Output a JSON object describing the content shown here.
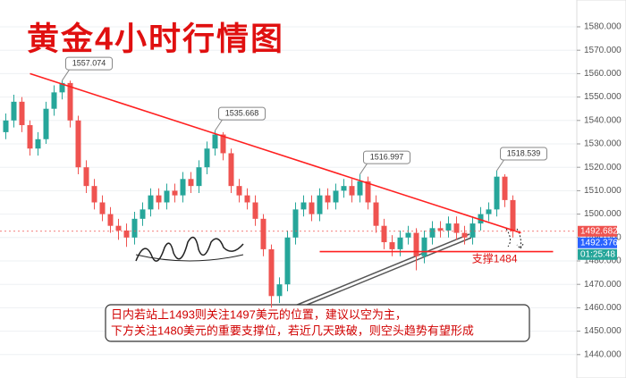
{
  "chart_data": {
    "type": "candlestick",
    "title": "黄金4小时行情图",
    "open": [
      1535,
      1540,
      1548,
      1538,
      1528,
      1532,
      1545,
      1552,
      1556,
      1540,
      1520,
      1512,
      1505,
      1500,
      1495,
      1493,
      1490,
      1498,
      1502,
      1508,
      1505,
      1510,
      1508,
      1515,
      1512,
      1520,
      1528,
      1534,
      1526,
      1512,
      1508,
      1505,
      1498,
      1485,
      1465,
      1470,
      1490,
      1502,
      1505,
      1500,
      1508,
      1505,
      1510,
      1512,
      1508,
      1514,
      1505,
      1495,
      1488,
      1485,
      1490,
      1492,
      1482,
      1490,
      1494,
      1493,
      1496,
      1492,
      1490,
      1496,
      1500,
      1502,
      1516,
      1506
    ],
    "high": [
      1543,
      1551,
      1550,
      1540,
      1535,
      1548,
      1555,
      1557.074,
      1557,
      1542,
      1523,
      1515,
      1508,
      1503,
      1498,
      1496,
      1501,
      1505,
      1511,
      1511,
      1513,
      1513,
      1518,
      1518,
      1523,
      1531,
      1535.668,
      1535,
      1528,
      1515,
      1511,
      1508,
      1500,
      1487,
      1473,
      1493,
      1505,
      1508,
      1508,
      1511,
      1511,
      1513,
      1515,
      1515,
      1516.997,
      1516,
      1508,
      1498,
      1491,
      1493,
      1495,
      1494,
      1493,
      1497,
      1497,
      1499,
      1499,
      1495,
      1499,
      1503,
      1505,
      1518.539,
      1517,
      1508
    ],
    "low": [
      1532,
      1537,
      1535,
      1525,
      1525,
      1530,
      1542,
      1549,
      1537,
      1517,
      1509,
      1502,
      1497,
      1492,
      1489,
      1486,
      1487,
      1495,
      1499,
      1502,
      1502,
      1505,
      1505,
      1509,
      1509,
      1517,
      1525,
      1523,
      1509,
      1505,
      1502,
      1495,
      1482,
      1460,
      1462,
      1467,
      1487,
      1499,
      1497,
      1497,
      1502,
      1502,
      1507,
      1505,
      1505,
      1502,
      1492,
      1485,
      1482,
      1482,
      1487,
      1476,
      1479,
      1487,
      1490,
      1490,
      1489,
      1487,
      1487,
      1493,
      1497,
      1499,
      1503,
      1490
    ],
    "close": [
      1540,
      1548,
      1538,
      1528,
      1532,
      1545,
      1552,
      1556,
      1540,
      1520,
      1512,
      1505,
      1500,
      1495,
      1493,
      1490,
      1498,
      1502,
      1508,
      1505,
      1510,
      1508,
      1515,
      1512,
      1520,
      1528,
      1534,
      1526,
      1512,
      1508,
      1505,
      1498,
      1485,
      1465,
      1470,
      1490,
      1502,
      1505,
      1500,
      1508,
      1505,
      1510,
      1512,
      1508,
      1514,
      1505,
      1495,
      1488,
      1485,
      1490,
      1492,
      1482,
      1490,
      1494,
      1493,
      1496,
      1492,
      1490,
      1496,
      1500,
      1502,
      1516,
      1506,
      1492.682
    ],
    "up_color": "#26a69a",
    "down_color": "#ef5350",
    "callouts": [
      7,
      26,
      44,
      61
    ],
    "trend_line": {
      "x": [
        3,
        64
      ],
      "y": [
        1560,
        1492
      ],
      "color": "#ff2020"
    },
    "support": {
      "value": 1484,
      "label": "支撑1484",
      "x": [
        39,
        68
      ],
      "color": "#ff2020"
    },
    "last_price": 1492.682,
    "second_price": 1492.376,
    "countdown": "01:25:48",
    "ylim": [
      1430,
      1591.45
    ],
    "yticks": [
      {
        "value": 1440,
        "label": "1440.000"
      },
      {
        "value": 1450,
        "label": "1450.000"
      },
      {
        "value": 1460,
        "label": "1460.000"
      },
      {
        "value": 1470,
        "label": "1470.000"
      },
      {
        "value": 1480,
        "label": "1480.000"
      },
      {
        "value": 1490,
        "label": "1490.000"
      },
      {
        "value": 1500,
        "label": "1500.000"
      },
      {
        "value": 1510,
        "label": "1510.000"
      },
      {
        "value": 1520,
        "label": "1520.000"
      },
      {
        "value": 1530,
        "label": "1530.000"
      },
      {
        "value": 1540,
        "label": "1540.000"
      },
      {
        "value": 1550,
        "label": "1550.000"
      },
      {
        "value": 1560,
        "label": "1560.000"
      },
      {
        "value": 1570,
        "label": "1570.000"
      },
      {
        "value": 1580,
        "label": "1580.000"
      }
    ],
    "grid": true,
    "annotation": [
      "日内若站上1493则关注1497美元的位置，建议以空为主，",
      "下方关注1480美元的重要支撑位，若近几天跌破，则空头趋势有望形成"
    ]
  }
}
